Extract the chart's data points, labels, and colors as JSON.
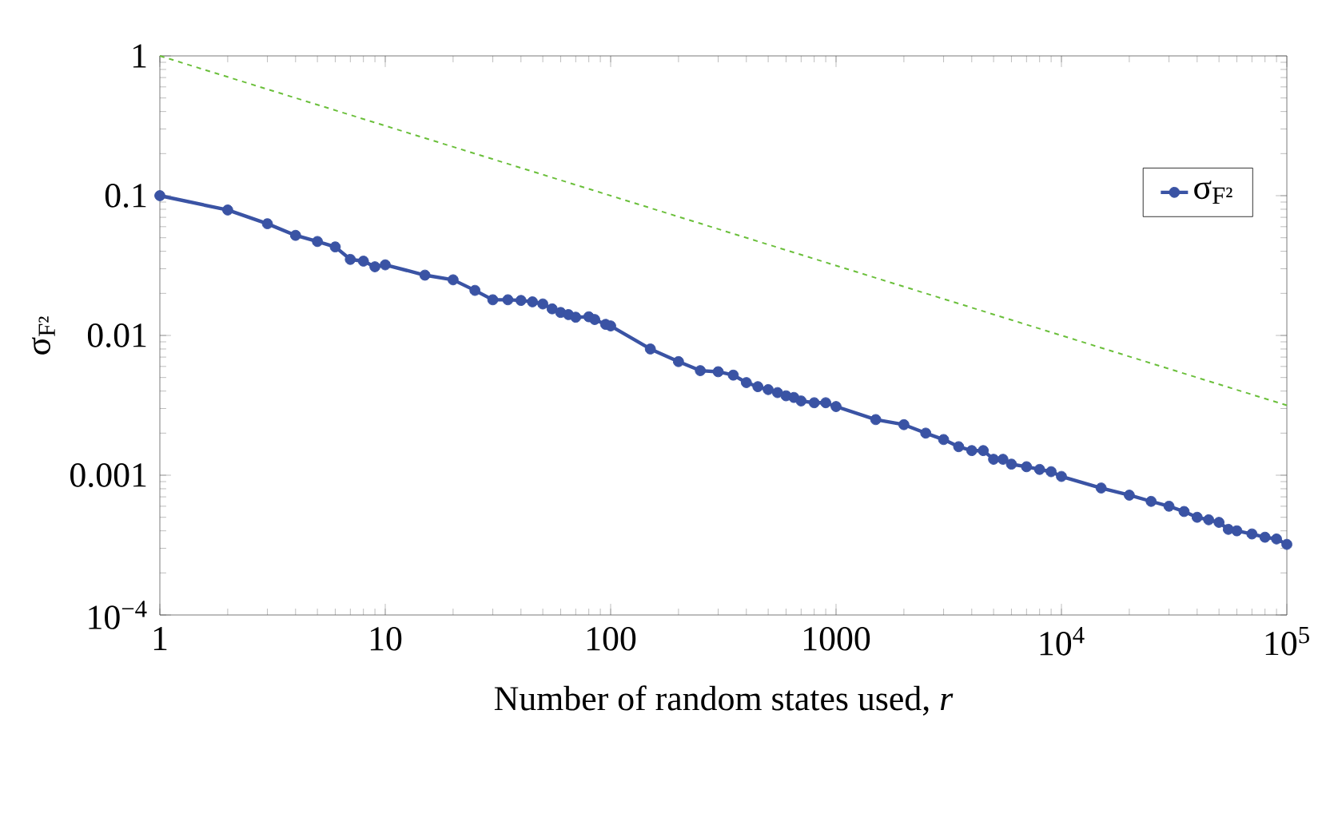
{
  "chart_data": {
    "type": "line",
    "xlabel": "Number of random states used, *r*",
    "ylabel": "σ$_{F²}$",
    "log": "xy",
    "xlim": [
      1,
      100000
    ],
    "ylim": [
      0.0001,
      1
    ],
    "xticks": [
      1,
      10,
      100,
      1000,
      {
        "value": 10000,
        "label": "10$^{4}$"
      },
      {
        "value": 100000,
        "label": "10$^{5}$"
      }
    ],
    "yticks": [
      {
        "value": 0.0001,
        "label": "10$^{−4}$"
      },
      0.001,
      0.01,
      0.1,
      1
    ],
    "grid": false,
    "legend": "top right",
    "marker": "circle",
    "series": [
      {
        "name": "σ$_{F²}$",
        "color": "#3a53a4",
        "x": [
          1,
          2,
          3,
          4,
          5,
          6,
          7,
          8,
          9,
          10,
          15,
          20,
          25,
          30,
          35,
          40,
          45,
          50,
          55,
          60,
          65,
          70,
          80,
          85,
          95,
          100,
          150,
          200,
          250,
          300,
          350,
          400,
          450,
          500,
          550,
          600,
          650,
          700,
          800,
          900,
          1000,
          1500,
          2000,
          2500,
          3000,
          3500,
          4000,
          4500,
          5000,
          5500,
          6000,
          7000,
          8000,
          9000,
          10000,
          15000,
          20000,
          25000,
          30000,
          35000,
          40000,
          45000,
          50000,
          55000,
          60000,
          70000,
          80000,
          90000,
          100000
        ],
        "values": [
          0.1,
          0.079,
          0.063,
          0.052,
          0.047,
          0.043,
          0.035,
          0.034,
          0.031,
          0.032,
          0.027,
          0.025,
          0.021,
          0.018,
          0.018,
          0.0178,
          0.0174,
          0.0168,
          0.0155,
          0.0146,
          0.0141,
          0.0135,
          0.0136,
          0.013,
          0.012,
          0.0117,
          0.008,
          0.0065,
          0.0056,
          0.0055,
          0.0052,
          0.0046,
          0.0043,
          0.0041,
          0.0039,
          0.0037,
          0.0036,
          0.0034,
          0.0033,
          0.0033,
          0.0031,
          0.0025,
          0.0023,
          0.002,
          0.0018,
          0.0016,
          0.0015,
          0.0015,
          0.0013,
          0.0013,
          0.0012,
          0.00115,
          0.0011,
          0.00106,
          0.00098,
          0.00081,
          0.00072,
          0.00065,
          0.0006,
          0.00055,
          0.0005,
          0.00048,
          0.00046,
          0.00041,
          0.0004,
          0.00038,
          0.00036,
          0.00035,
          0.00032
        ]
      },
      {
        "color": "#6abf3a",
        "x": [
          1,
          100000
        ],
        "values": [
          1,
          0.00316
        ],
        "line_style": "dashed",
        "marker": "none"
      }
    ]
  }
}
